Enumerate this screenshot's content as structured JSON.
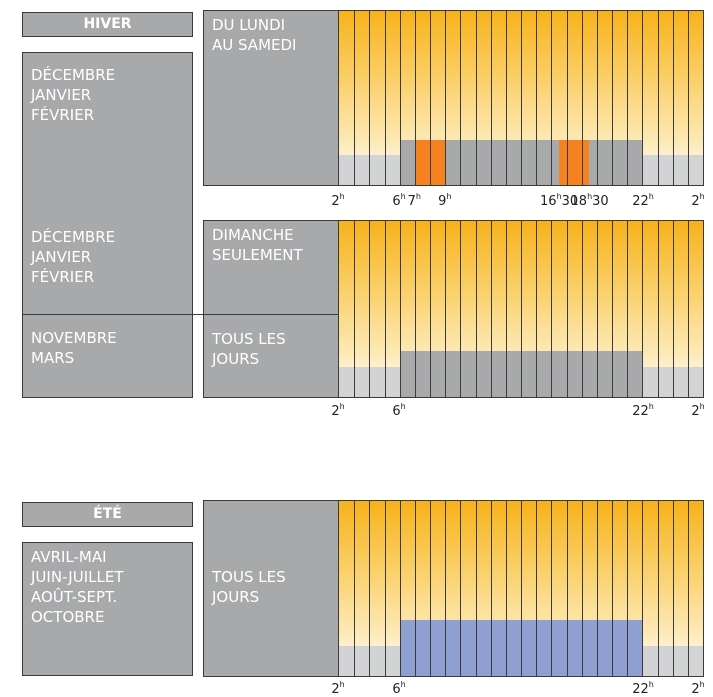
{
  "winter": {
    "header": "HIVER",
    "months_left_top": "DÉCEMBRE\nJANVIER\nFÉVRIER",
    "months_left_mid": "DÉCEMBRE\nJANVIER\nFÉVRIER",
    "months_left_bottom": "NOVEMBRE\nMARS",
    "row1_label": "DU LUNDI\nAU SAMEDI",
    "row2_label": "DIMANCHE\nSEULEMENT",
    "row3_label": "TOUS LES\nJOURS",
    "ticks_row1": [
      {
        "label": "2",
        "hour": 2
      },
      {
        "label": "6",
        "hour": 6
      },
      {
        "label": "7",
        "hour": 7
      },
      {
        "label": "9",
        "hour": 9
      },
      {
        "label": "16",
        "suffix": "30",
        "hour": 16.5
      },
      {
        "label": "18",
        "suffix": "30",
        "hour": 18.5
      },
      {
        "label": "22",
        "hour": 22
      },
      {
        "label": "2",
        "hour": 26
      }
    ],
    "ticks_row3": [
      {
        "label": "2",
        "hour": 2
      },
      {
        "label": "6",
        "hour": 6
      },
      {
        "label": "22",
        "hour": 22
      },
      {
        "label": "2",
        "hour": 26
      }
    ]
  },
  "summer": {
    "header": "ÉTÉ",
    "months": "AVRIL-MAI\nJUIN-JUILLET\nAOÛT-SEPT.\nOCTOBRE",
    "row_label": "TOUS LES\nJOURS",
    "ticks": [
      {
        "label": "2",
        "hour": 2
      },
      {
        "label": "6",
        "hour": 6
      },
      {
        "label": "22",
        "hour": 22
      },
      {
        "label": "2",
        "hour": 26
      }
    ]
  },
  "hour_unit": "h",
  "colors": {
    "base": "#d2d3d5",
    "offpeak": "#a8a9ab",
    "peak": "#f58220",
    "summer": "#8e9fd1"
  },
  "charts": {
    "winter_weekday": {
      "segments": [
        {
          "from": 2,
          "to": 6,
          "level": "base"
        },
        {
          "from": 6,
          "to": 7,
          "level": "offpeak"
        },
        {
          "from": 7,
          "to": 9,
          "level": "peak"
        },
        {
          "from": 9,
          "to": 16.5,
          "level": "offpeak"
        },
        {
          "from": 16.5,
          "to": 18.5,
          "level": "peak"
        },
        {
          "from": 18.5,
          "to": 22,
          "level": "offpeak"
        },
        {
          "from": 22,
          "to": 26,
          "level": "base"
        }
      ]
    },
    "winter_all": {
      "segments": [
        {
          "from": 2,
          "to": 6,
          "level": "base"
        },
        {
          "from": 6,
          "to": 22,
          "level": "offpeak"
        },
        {
          "from": 22,
          "to": 26,
          "level": "base"
        }
      ]
    },
    "summer_all": {
      "segments": [
        {
          "from": 2,
          "to": 6,
          "level": "base"
        },
        {
          "from": 6,
          "to": 22,
          "level": "summer"
        },
        {
          "from": 22,
          "to": 26,
          "level": "base"
        }
      ]
    }
  }
}
